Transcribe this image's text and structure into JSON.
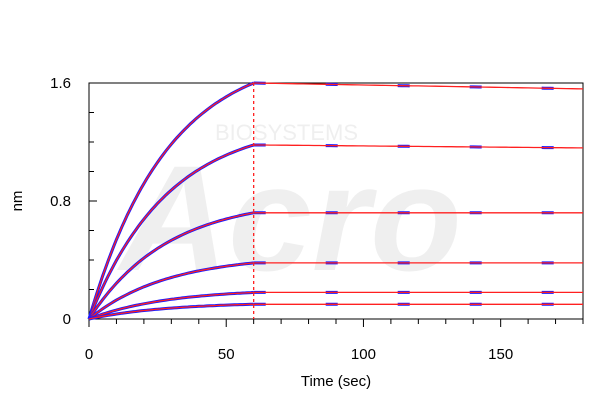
{
  "chart_data": {
    "type": "line",
    "xlabel": "Time (sec)",
    "ylabel": "nm",
    "xlim": [
      0,
      180
    ],
    "ylim": [
      0,
      1.6
    ],
    "x_ticks": [
      0,
      50,
      100,
      150
    ],
    "y_ticks": [
      0,
      0.8,
      1.6
    ],
    "y_tick_labels": [
      "0",
      "0.8",
      "1.6"
    ],
    "grid": false,
    "colors": {
      "raw": "#1a1aff",
      "fit": "#ff2020",
      "divider": "#ff2020"
    },
    "assoc_end": 60,
    "series": [
      {
        "assoc_end_value": 1.6,
        "dissoc_end_value": 1.56
      },
      {
        "assoc_end_value": 1.18,
        "dissoc_end_value": 1.16
      },
      {
        "assoc_end_value": 0.72,
        "dissoc_end_value": 0.72
      },
      {
        "assoc_end_value": 0.38,
        "dissoc_end_value": 0.38
      },
      {
        "assoc_end_value": 0.18,
        "dissoc_end_value": 0.18
      },
      {
        "assoc_end_value": 0.1,
        "dissoc_end_value": 0.1
      }
    ]
  },
  "watermark": {
    "small_text": "BIOSYSTEMS",
    "large_text": "Acro"
  }
}
